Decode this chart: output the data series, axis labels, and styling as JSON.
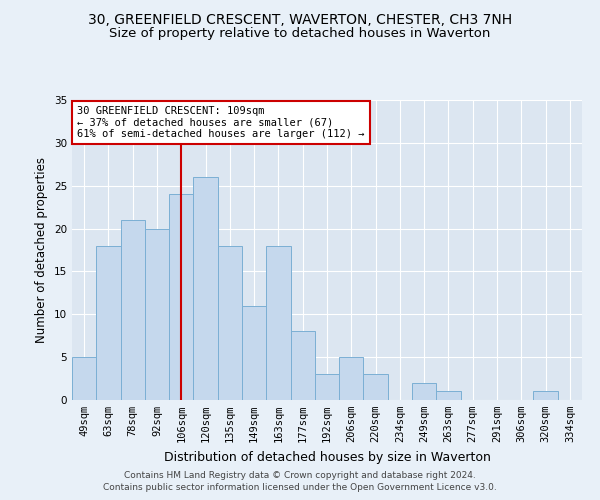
{
  "title1": "30, GREENFIELD CRESCENT, WAVERTON, CHESTER, CH3 7NH",
  "title2": "Size of property relative to detached houses in Waverton",
  "xlabel": "Distribution of detached houses by size in Waverton",
  "ylabel": "Number of detached properties",
  "categories": [
    "49sqm",
    "63sqm",
    "78sqm",
    "92sqm",
    "106sqm",
    "120sqm",
    "135sqm",
    "149sqm",
    "163sqm",
    "177sqm",
    "192sqm",
    "206sqm",
    "220sqm",
    "234sqm",
    "249sqm",
    "263sqm",
    "277sqm",
    "291sqm",
    "306sqm",
    "320sqm",
    "334sqm"
  ],
  "values": [
    5,
    18,
    21,
    20,
    24,
    26,
    18,
    11,
    18,
    8,
    3,
    5,
    3,
    0,
    2,
    1,
    0,
    0,
    0,
    1,
    0
  ],
  "bar_color": "#c5d8ed",
  "bar_edge_color": "#7bafd4",
  "background_color": "#e8f0f8",
  "plot_bg_color": "#dce6f1",
  "grid_color": "#ffffff",
  "vline_x_index": 4,
  "vline_color": "#cc0000",
  "annotation_text": "30 GREENFIELD CRESCENT: 109sqm\n← 37% of detached houses are smaller (67)\n61% of semi-detached houses are larger (112) →",
  "annotation_box_color": "#ffffff",
  "annotation_box_edge_color": "#cc0000",
  "ylim": [
    0,
    35
  ],
  "yticks": [
    0,
    5,
    10,
    15,
    20,
    25,
    30,
    35
  ],
  "footnote": "Contains HM Land Registry data © Crown copyright and database right 2024.\nContains public sector information licensed under the Open Government Licence v3.0.",
  "title1_fontsize": 10,
  "title2_fontsize": 9.5,
  "xlabel_fontsize": 9,
  "ylabel_fontsize": 8.5,
  "tick_fontsize": 7.5,
  "annotation_fontsize": 7.5,
  "footnote_fontsize": 6.5
}
